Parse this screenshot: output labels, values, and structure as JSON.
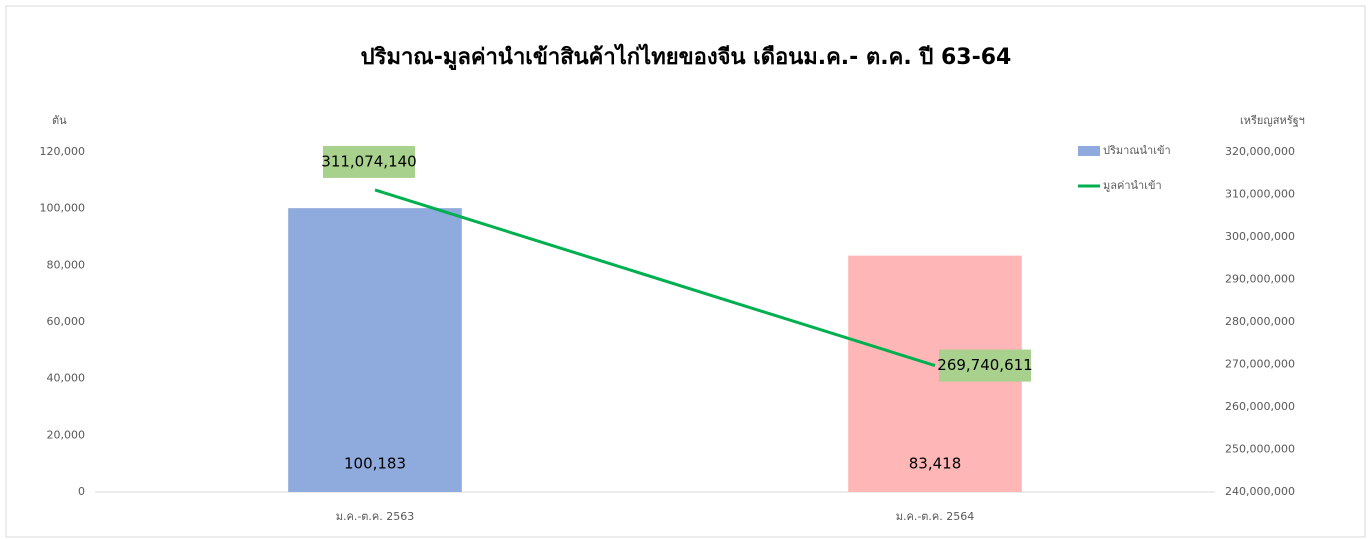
{
  "chart_data": {
    "type": "bar_line",
    "title": "ปริมาณ-มูลค่านำเข้าสินค้าไก่ไทยของจีน เดือนม.ค.- ต.ค. ปี 63-64",
    "y_label": "ตัน",
    "y2_label": "เหรียญสหรัฐฯ",
    "categories": [
      "ม.ค.-ต.ค. 2563",
      "ม.ค.-ต.ค. 2564"
    ],
    "series": [
      {
        "name": "ปริมาณนำเข้า",
        "type": "bar",
        "color": "#8faadc",
        "colors": [
          "#8faadc",
          "#ffb6b6"
        ],
        "values": [
          100183,
          83418
        ],
        "value_labels": [
          "100,183",
          "83,418"
        ]
      },
      {
        "name": "มูลค่านำเข้า",
        "type": "line",
        "axis": "y2",
        "color": "#00b050",
        "label_color": "#a9d18e",
        "values": [
          311074140,
          269740611
        ],
        "value_labels": [
          "311,074,140",
          "269,740,611"
        ]
      }
    ],
    "ylim": [
      0,
      120000
    ],
    "yticks": [
      0,
      {
        "value": 20000,
        "label": "20,000"
      },
      {
        "value": 40000,
        "label": "40,000"
      },
      {
        "value": 60000,
        "label": "60,000"
      },
      {
        "value": 80000,
        "label": "80,000"
      },
      {
        "value": 100000,
        "label": "100,000"
      },
      {
        "value": 120000,
        "label": "120,000"
      }
    ],
    "y2lim": [
      240000000,
      320000000
    ],
    "y2ticks": [
      {
        "value": 240000000,
        "label": "240,000,000"
      },
      {
        "value": 250000000,
        "label": "250,000,000"
      },
      {
        "value": 260000000,
        "label": "260,000,000"
      },
      {
        "value": 270000000,
        "label": "270,000,000"
      },
      {
        "value": 280000000,
        "label": "280,000,000"
      },
      {
        "value": 290000000,
        "label": "290,000,000"
      },
      {
        "value": 300000000,
        "label": "300,000,000"
      },
      {
        "value": 310000000,
        "label": "310,000,000"
      },
      {
        "value": 320000000,
        "label": "320,000,000"
      }
    ],
    "grid": false,
    "legend": "upper right"
  }
}
